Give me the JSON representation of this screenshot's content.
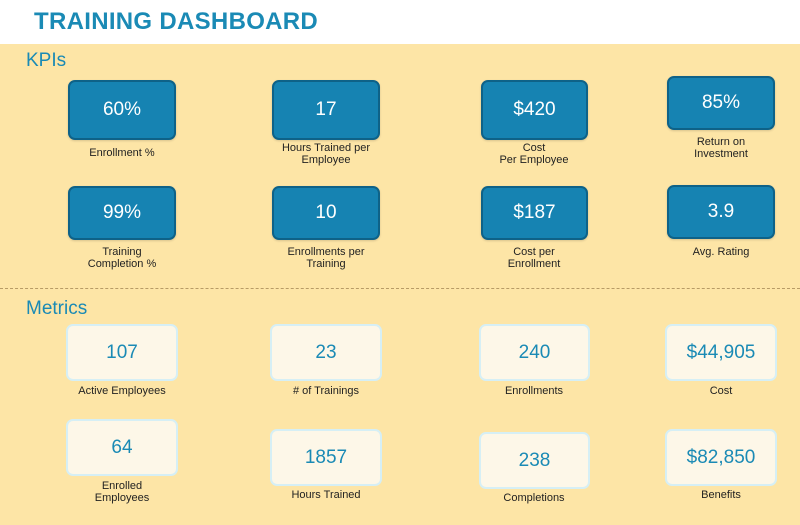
{
  "header": {
    "title": "TRAINING DASHBOARD"
  },
  "kpis": {
    "title": "KPIs",
    "items": [
      {
        "value": "60%",
        "label": "Enrollment %"
      },
      {
        "value": "17",
        "label": "Hours Trained per\nEmployee"
      },
      {
        "value": "$420",
        "label": "Cost\nPer Employee"
      },
      {
        "value": "85%",
        "label": "Return on\nInvestment"
      },
      {
        "value": "99%",
        "label": "Training\nCompletion %"
      },
      {
        "value": "10",
        "label": "Enrollments per\nTraining"
      },
      {
        "value": "$187",
        "label": "Cost per\nEnrollment"
      },
      {
        "value": "3.9",
        "label": "Avg. Rating"
      }
    ]
  },
  "metrics": {
    "title": "Metrics",
    "items": [
      {
        "value": "107",
        "label": "Active Employees"
      },
      {
        "value": "23",
        "label": "# of Trainings"
      },
      {
        "value": "240",
        "label": "Enrollments"
      },
      {
        "value": "$44,905",
        "label": "Cost"
      },
      {
        "value": "64",
        "label": "Enrolled\nEmployees"
      },
      {
        "value": "1857",
        "label": "Hours Trained"
      },
      {
        "value": "238",
        "label": "Completions"
      },
      {
        "value": "$82,850",
        "label": "Benefits"
      }
    ]
  },
  "colors": {
    "accent": "#1a8ab5",
    "kpi_card": "#1683b2",
    "metric_card": "#fdf7e8",
    "panel_background": "#fde5a6"
  }
}
